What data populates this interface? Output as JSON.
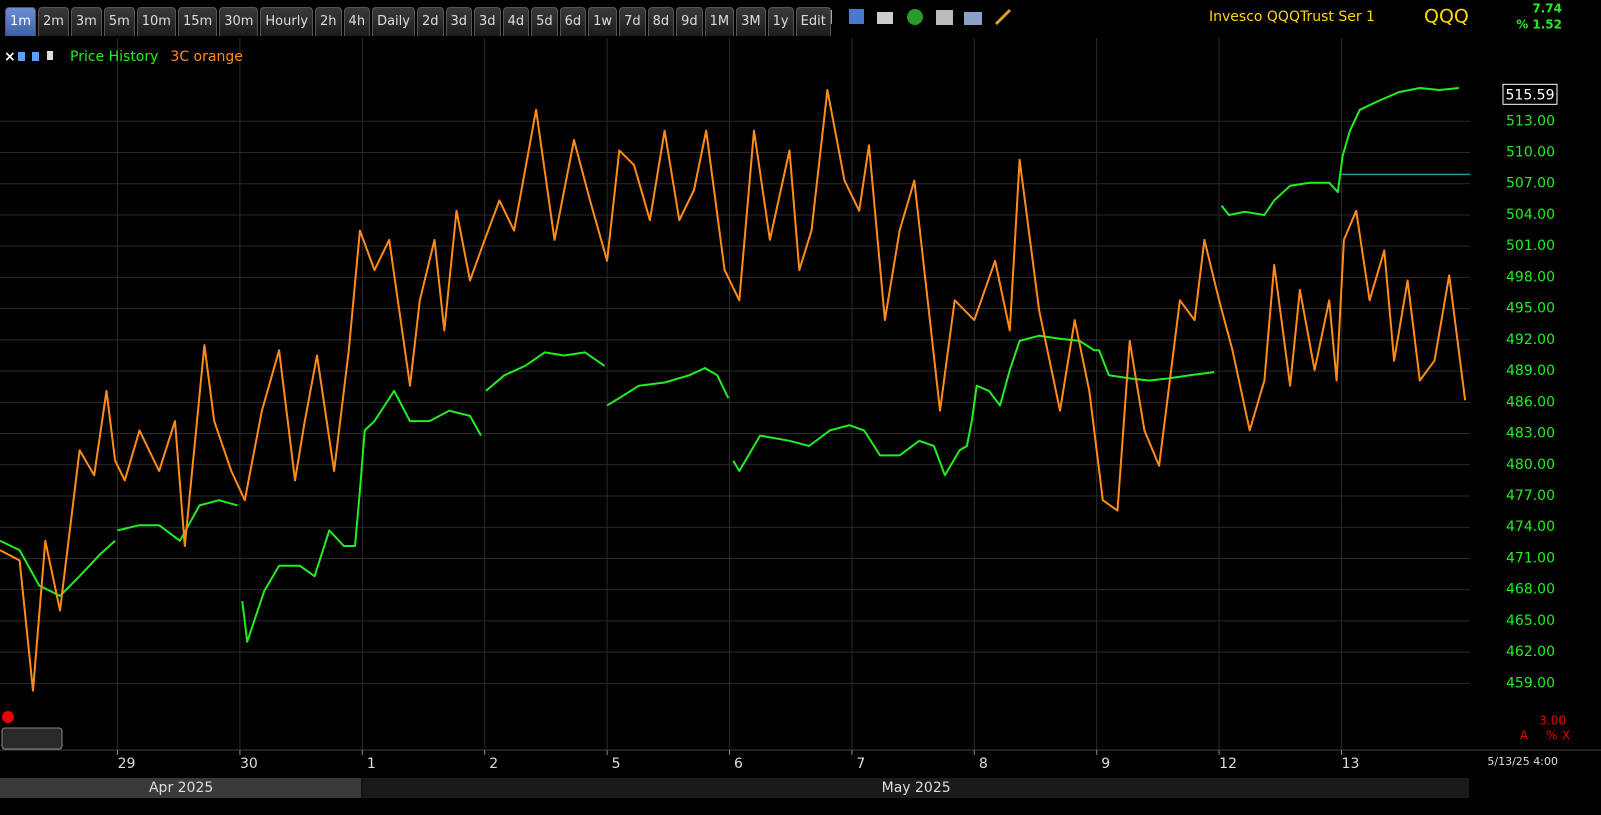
{
  "toolbar": {
    "intervals": [
      "1m",
      "2m",
      "3m",
      "5m",
      "10m",
      "15m",
      "30m",
      "Hourly",
      "2h",
      "4h",
      "Daily",
      "2d",
      "3d",
      "3d",
      "4d",
      "5d",
      "6d",
      "1w",
      "7d",
      "8d",
      "9d",
      "1M",
      "3M",
      "1y",
      "Edit"
    ],
    "selected_index": 0
  },
  "header": {
    "security_name": "Invesco QQQTrust Ser 1",
    "symbol": "QQQ",
    "change": "7.74",
    "change_pct": "% 1.52"
  },
  "chart_data": {
    "type": "line",
    "legend": "top-left",
    "grid": true,
    "xlim": [
      0.04,
      12.05
    ],
    "ylim": [
      452.6,
      521.0
    ],
    "xticks": [
      {
        "value": 1,
        "label": "29"
      },
      {
        "value": 2,
        "label": "30"
      },
      {
        "value": 3,
        "label": "1"
      },
      {
        "value": 4,
        "label": "2"
      },
      {
        "value": 5,
        "label": "5"
      },
      {
        "value": 6,
        "label": "6"
      },
      {
        "value": 7,
        "label": "7"
      },
      {
        "value": 8,
        "label": "8"
      },
      {
        "value": 9,
        "label": "9"
      },
      {
        "value": 10,
        "label": "12"
      },
      {
        "value": 11,
        "label": "13"
      }
    ],
    "yticks": [
      {
        "value": 459,
        "label": "459.00"
      },
      {
        "value": 462,
        "label": "462.00"
      },
      {
        "value": 465,
        "label": "465.00"
      },
      {
        "value": 468,
        "label": "468.00"
      },
      {
        "value": 471,
        "label": "471.00"
      },
      {
        "value": 474,
        "label": "474.00"
      },
      {
        "value": 477,
        "label": "477.00"
      },
      {
        "value": 480,
        "label": "480.00"
      },
      {
        "value": 483,
        "label": "483.00"
      },
      {
        "value": 486,
        "label": "486.00"
      },
      {
        "value": 489,
        "label": "489.00"
      },
      {
        "value": 492,
        "label": "492.00"
      },
      {
        "value": 495,
        "label": "495.00"
      },
      {
        "value": 498,
        "label": "498.00"
      },
      {
        "value": 501,
        "label": "501.00"
      },
      {
        "value": 504,
        "label": "504.00"
      },
      {
        "value": 507,
        "label": "507.00"
      },
      {
        "value": 510,
        "label": "510.00"
      },
      {
        "value": 513,
        "label": "513.00"
      }
    ],
    "periods": [
      {
        "label": "Apr 2025",
        "start": 0.04,
        "end": 3
      },
      {
        "label": "May 2025",
        "start": 3,
        "end": 12.05
      }
    ],
    "last_price": 515.59,
    "reference_line": {
      "value": 507.9,
      "start": 11,
      "color": "#1f9aa0"
    },
    "timestamp": "5/13/25 4:00",
    "lower_pane": {
      "scale": "3.00",
      "buttons": [
        "A",
        "%",
        "X"
      ]
    },
    "series": [
      {
        "name": "Price History",
        "color": "#22ee22",
        "x": [
          0.04,
          0.2,
          0.36,
          0.53,
          0.69,
          0.85,
          0.98,
          0.99,
          1.0,
          1.18,
          1.34,
          1.51,
          1.67,
          1.83,
          1.98,
          2.0,
          2.02,
          2.06,
          2.2,
          2.32,
          2.49,
          2.61,
          2.73,
          2.85,
          2.94,
          2.98,
          3.02,
          3.1,
          3.26,
          3.39,
          3.55,
          3.71,
          3.88,
          3.97,
          3.99,
          4.01,
          4.16,
          4.33,
          4.49,
          4.65,
          4.82,
          4.98,
          4.99,
          5.0,
          5.14,
          5.26,
          5.47,
          5.67,
          5.8,
          5.9,
          5.99,
          6.01,
          6.03,
          6.08,
          6.25,
          6.49,
          6.65,
          6.82,
          6.98,
          7.1,
          7.23,
          7.39,
          7.55,
          7.67,
          7.76,
          7.88,
          7.94,
          7.98,
          8.02,
          8.12,
          8.21,
          8.29,
          8.37,
          8.53,
          8.7,
          8.86,
          8.98,
          9.02,
          9.1,
          9.27,
          9.43,
          9.59,
          9.76,
          9.96,
          9.99,
          10.02,
          10.08,
          10.21,
          10.37,
          10.45,
          10.58,
          10.74,
          10.9,
          10.97,
          11.01,
          11.07,
          11.15,
          11.31,
          11.47,
          11.64,
          11.8,
          11.96
        ],
        "values": [
          472.7,
          471.8,
          468.4,
          467.4,
          469.3,
          471.3,
          472.7,
          null,
          473.7,
          474.2,
          474.2,
          472.7,
          476.1,
          476.6,
          476.1,
          null,
          466.9,
          463.0,
          467.9,
          470.3,
          470.3,
          469.3,
          473.7,
          472.2,
          472.2,
          477.5,
          483.3,
          484.2,
          487.1,
          484.2,
          484.2,
          485.2,
          484.7,
          482.8,
          null,
          487.1,
          488.6,
          489.5,
          490.8,
          490.5,
          490.8,
          489.5,
          null,
          485.7,
          486.7,
          487.6,
          487.9,
          488.6,
          489.3,
          488.6,
          486.4,
          null,
          480.4,
          479.4,
          482.8,
          482.3,
          481.8,
          483.3,
          483.8,
          483.3,
          480.9,
          480.9,
          482.3,
          481.8,
          479.0,
          481.4,
          481.8,
          484.2,
          487.6,
          487.1,
          485.7,
          489.1,
          491.9,
          492.4,
          492.1,
          491.9,
          491.0,
          491.0,
          488.6,
          488.3,
          488.1,
          488.3,
          488.6,
          488.9,
          null,
          504.9,
          504.0,
          504.3,
          504.0,
          505.4,
          506.8,
          507.1,
          507.1,
          506.2,
          509.7,
          512.1,
          514.1,
          515.0,
          515.8,
          516.2,
          516.0,
          516.2
        ]
      },
      {
        "name": "3C orange",
        "color": "#ff8c1a",
        "x": [
          0.04,
          0.2,
          0.31,
          0.41,
          0.53,
          0.69,
          0.81,
          0.91,
          0.98,
          1.06,
          1.18,
          1.34,
          1.47,
          1.55,
          1.71,
          1.79,
          1.93,
          2.04,
          2.18,
          2.32,
          2.45,
          2.53,
          2.63,
          2.77,
          2.89,
          2.98,
          3.1,
          3.22,
          3.39,
          3.47,
          3.59,
          3.67,
          3.77,
          3.88,
          4.0,
          4.12,
          4.24,
          4.42,
          4.57,
          4.73,
          4.86,
          5.0,
          5.1,
          5.22,
          5.35,
          5.47,
          5.59,
          5.71,
          5.81,
          5.96,
          6.08,
          6.2,
          6.33,
          6.49,
          6.57,
          6.67,
          6.8,
          6.94,
          7.06,
          7.14,
          7.27,
          7.39,
          7.51,
          7.72,
          7.84,
          8.0,
          8.17,
          8.29,
          8.37,
          8.53,
          8.7,
          8.82,
          8.94,
          9.05,
          9.17,
          9.27,
          9.39,
          9.51,
          9.68,
          9.8,
          9.88,
          10.0,
          10.11,
          10.25,
          10.37,
          10.45,
          10.58,
          10.66,
          10.78,
          10.9,
          10.96,
          11.02,
          11.12,
          11.23,
          11.35,
          11.43,
          11.54,
          11.64,
          11.76,
          11.88,
          12.01
        ],
        "values": [
          471.8,
          470.8,
          458.3,
          472.7,
          466.0,
          481.4,
          479.0,
          487.1,
          480.4,
          478.5,
          483.3,
          479.4,
          484.2,
          472.2,
          491.5,
          484.2,
          479.4,
          476.6,
          485.2,
          491.0,
          478.5,
          484.2,
          490.5,
          479.4,
          491.0,
          502.5,
          498.7,
          501.6,
          487.6,
          495.8,
          501.6,
          492.9,
          504.4,
          497.7,
          501.6,
          505.4,
          502.5,
          514.1,
          501.6,
          511.2,
          505.4,
          499.6,
          510.2,
          508.8,
          503.5,
          512.1,
          503.5,
          506.4,
          512.1,
          498.7,
          495.8,
          512.1,
          501.6,
          510.2,
          498.7,
          502.5,
          516.0,
          507.3,
          504.4,
          510.7,
          493.9,
          502.5,
          507.3,
          485.2,
          495.8,
          493.9,
          499.6,
          492.9,
          509.3,
          494.8,
          485.2,
          493.9,
          487.1,
          476.6,
          475.6,
          491.9,
          483.3,
          479.9,
          495.8,
          493.9,
          501.6,
          495.8,
          491.0,
          483.3,
          488.1,
          499.2,
          487.6,
          496.8,
          489.1,
          495.8,
          488.1,
          501.6,
          504.4,
          495.8,
          500.6,
          490.0,
          497.7,
          488.1,
          490.0,
          498.2,
          486.2
        ]
      }
    ]
  }
}
